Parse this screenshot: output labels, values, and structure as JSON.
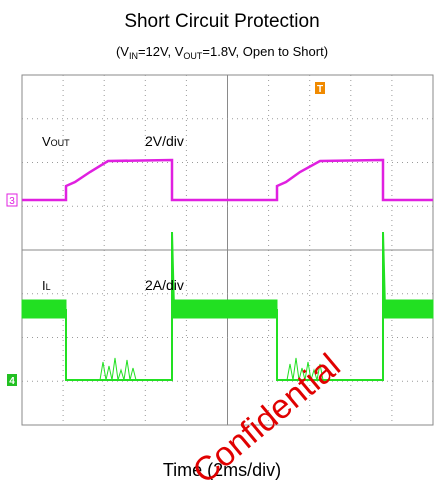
{
  "title": "Short Circuit Protection",
  "subtitle": [
    "(V",
    "IN",
    "=12V, V",
    "OUT",
    "=1.8V, Open to Short)"
  ],
  "channels": [
    {
      "marker": "3",
      "name": [
        "V",
        "OUT"
      ],
      "scale": "2V/div"
    },
    {
      "marker": "4",
      "name": [
        "I",
        "L"
      ],
      "scale": "2A/div"
    }
  ],
  "trigger_marker": "T",
  "x_axis_label": "Time (2ms/div)",
  "watermark": "Confidential"
}
